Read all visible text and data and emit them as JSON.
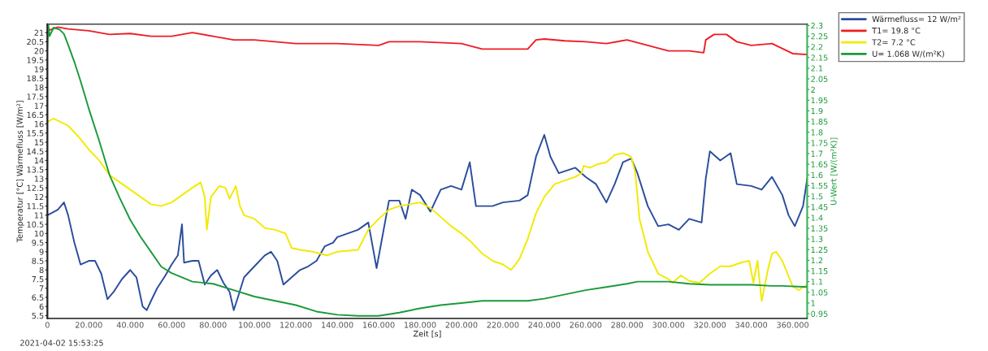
{
  "chart_data": {
    "type": "line",
    "xlabel": "Zeit [s]",
    "ylabel": "Temperatur [°C] Wärmefluss [W/m²]",
    "y2label": "U-Wert [W/(m²K)]",
    "annotations": [
      "2021-04-02 15:53:25"
    ],
    "xlim": [
      0,
      367
    ],
    "xticks": [
      0,
      {
        "value": 20,
        "label": "20.000"
      },
      {
        "value": 40,
        "label": "40.000"
      },
      {
        "value": 60,
        "label": "60.000"
      },
      {
        "value": 80,
        "label": "80.000"
      },
      {
        "value": 100,
        "label": "100.000"
      },
      {
        "value": 120,
        "label": "120.000"
      },
      {
        "value": 140,
        "label": "140.000"
      },
      {
        "value": 160,
        "label": "160.000"
      },
      {
        "value": 180,
        "label": "180.000"
      },
      {
        "value": 200,
        "label": "200.000"
      },
      {
        "value": 220,
        "label": "220.000"
      },
      {
        "value": 240,
        "label": "240.000"
      },
      {
        "value": 260,
        "label": "260.000"
      },
      {
        "value": 280,
        "label": "280.000"
      },
      {
        "value": 300,
        "label": "300.000"
      },
      {
        "value": 320,
        "label": "320.000"
      },
      {
        "value": 340,
        "label": "340.000"
      },
      {
        "value": 360,
        "label": "360.000"
      }
    ],
    "ylim": [
      5.35,
      21.46
    ],
    "yticks": [
      5.5,
      6,
      6.5,
      7,
      7.5,
      8,
      8.5,
      9,
      9.5,
      10,
      10.5,
      11,
      11.5,
      12,
      12.5,
      13,
      13.5,
      14,
      14.5,
      15,
      15.5,
      16,
      16.5,
      17,
      17.5,
      18,
      18.5,
      19,
      19.5,
      20,
      20.5,
      21
    ],
    "y2lim": [
      0.928,
      2.306
    ],
    "y2ticks": [
      0.95,
      1,
      1.05,
      1.1,
      1.15,
      1.2,
      1.25,
      1.3,
      1.35,
      1.4,
      1.45,
      1.5,
      1.55,
      1.6,
      1.65,
      1.7,
      1.75,
      1.8,
      1.85,
      1.9,
      1.95,
      2,
      2.05,
      2.1,
      2.15,
      2.2,
      2.25,
      2.3
    ],
    "grid": false,
    "legend": "top right",
    "marker": "none",
    "line_style": "solid",
    "series": [
      {
        "name": "Wärmefluss= 12 W/m²",
        "color": "#2a4d9c",
        "x": [
          0,
          5,
          8,
          10,
          13,
          16,
          20,
          23,
          26,
          29,
          32,
          36,
          40,
          43,
          46,
          48,
          50,
          53,
          57,
          60,
          63,
          65,
          66,
          70,
          73,
          76,
          79,
          82,
          85,
          88,
          90,
          92,
          95,
          100,
          105,
          108,
          111,
          114,
          118,
          122,
          126,
          130,
          134,
          138,
          140,
          150,
          155,
          159,
          165,
          170,
          173,
          176,
          180,
          185,
          190,
          195,
          200,
          204,
          207,
          215,
          220,
          228,
          232,
          236,
          240,
          243,
          247,
          255,
          260,
          265,
          270,
          274,
          278,
          282,
          285,
          290,
          295,
          300,
          305,
          310,
          316,
          318,
          320,
          325,
          330,
          333,
          340,
          345,
          350,
          355,
          358,
          361,
          365,
          367
        ],
        "values": [
          11,
          11.3,
          11.7,
          11,
          9.5,
          8.3,
          8.5,
          8.5,
          7.8,
          6.4,
          6.8,
          7.5,
          8,
          7.6,
          6,
          5.8,
          6.3,
          7,
          7.7,
          8.3,
          8.8,
          10.5,
          8.4,
          8.5,
          8.5,
          7.2,
          7.7,
          8,
          7.3,
          6.8,
          5.8,
          6.5,
          7.6,
          8.2,
          8.8,
          9,
          8.5,
          7.2,
          7.6,
          8,
          8.2,
          8.5,
          9.3,
          9.5,
          9.8,
          10.2,
          10.6,
          8.1,
          11.8,
          11.8,
          10.8,
          12.4,
          12.1,
          11.2,
          12.4,
          12.6,
          12.4,
          13.9,
          11.5,
          11.5,
          11.7,
          11.8,
          12.1,
          14.2,
          15.4,
          14.2,
          13.3,
          13.6,
          13.1,
          12.7,
          11.7,
          12.7,
          13.9,
          14.1,
          13.3,
          11.5,
          10.4,
          10.5,
          10.2,
          10.8,
          10.6,
          13,
          14.5,
          14,
          14.4,
          12.7,
          12.6,
          12.4,
          13.1,
          12.1,
          11,
          10.4,
          11.5,
          13
        ]
      },
      {
        "name": "T1= 19.8 °C",
        "color": "#ee1c24",
        "x": [
          0,
          5,
          10,
          20,
          30,
          40,
          50,
          60,
          70,
          80,
          90,
          100,
          110,
          120,
          140,
          160,
          165,
          180,
          200,
          210,
          220,
          232,
          236,
          240,
          250,
          260,
          270,
          280,
          290,
          300,
          310,
          317,
          318,
          322,
          328,
          333,
          340,
          350,
          360,
          367
        ],
        "values": [
          21.1,
          21.3,
          21.2,
          21.1,
          20.9,
          20.95,
          20.8,
          20.8,
          21,
          20.8,
          20.6,
          20.6,
          20.5,
          20.4,
          20.4,
          20.3,
          20.5,
          20.5,
          20.4,
          20.1,
          20.1,
          20.1,
          20.6,
          20.65,
          20.55,
          20.5,
          20.4,
          20.6,
          20.3,
          20,
          20,
          19.9,
          20.6,
          20.9,
          20.9,
          20.5,
          20.3,
          20.4,
          19.85,
          19.8
        ]
      },
      {
        "name": "T2= 7.2 °C",
        "color": "#f2ea00",
        "x": [
          0,
          3,
          10,
          15,
          20,
          25,
          30,
          35,
          40,
          45,
          50,
          55,
          60,
          65,
          70,
          74,
          76,
          77,
          79,
          83,
          86,
          88,
          91,
          93,
          95,
          100,
          105,
          110,
          115,
          118,
          122,
          128,
          135,
          140,
          150,
          155,
          160,
          165,
          170,
          175,
          180,
          185,
          190,
          195,
          200,
          205,
          210,
          215,
          220,
          224,
          228,
          232,
          236,
          240,
          245,
          250,
          255,
          258,
          259,
          262,
          266,
          270,
          274,
          278,
          282,
          284,
          286,
          290,
          295,
          300,
          302,
          306,
          310,
          315,
          320,
          325,
          330,
          335,
          339,
          341,
          343,
          345,
          348,
          350,
          352,
          355,
          360,
          363,
          367
        ],
        "values": [
          16.1,
          16.3,
          15.9,
          15.3,
          14.6,
          14,
          13.2,
          12.8,
          12.4,
          12,
          11.6,
          11.5,
          11.7,
          12.1,
          12.5,
          12.8,
          12,
          10.2,
          12,
          12.6,
          12.5,
          11.9,
          12.6,
          11.5,
          11,
          10.8,
          10.3,
          10.2,
          10,
          9.2,
          9.1,
          9,
          8.8,
          9,
          9.1,
          10.2,
          10.8,
          11.3,
          11.5,
          11.6,
          11.7,
          11.4,
          10.9,
          10.4,
          10,
          9.5,
          8.9,
          8.5,
          8.3,
          8,
          8.6,
          9.7,
          11.1,
          12,
          12.7,
          12.9,
          13.1,
          13.3,
          13.7,
          13.6,
          13.8,
          13.9,
          14.3,
          14.4,
          14.2,
          13.3,
          10.8,
          9,
          7.8,
          7.5,
          7.3,
          7.7,
          7.4,
          7.3,
          7.8,
          8.2,
          8.2,
          8.4,
          8.5,
          7.3,
          8.5,
          6.3,
          8,
          8.9,
          9,
          8.5,
          7.1,
          6.9,
          7.2
        ]
      },
      {
        "name": "U= 1.068 W/(m²K)",
        "color": "#1a9a3a",
        "axis": "y2",
        "x": [
          0,
          0.5,
          1,
          3,
          6,
          8,
          10,
          13,
          16,
          20,
          25,
          30,
          35,
          40,
          45,
          50,
          55,
          60,
          65,
          70,
          80,
          90,
          100,
          110,
          120,
          130,
          140,
          150,
          160,
          170,
          180,
          190,
          200,
          210,
          220,
          232,
          240,
          250,
          260,
          270,
          280,
          285,
          290,
          300,
          310,
          320,
          330,
          340,
          350,
          355,
          367
        ],
        "values": [
          2.2,
          2.3,
          2.25,
          2.29,
          2.28,
          2.26,
          2.21,
          2.13,
          2.04,
          1.91,
          1.76,
          1.6,
          1.49,
          1.39,
          1.31,
          1.24,
          1.17,
          1.14,
          1.12,
          1.1,
          1.09,
          1.06,
          1.03,
          1.01,
          0.99,
          0.96,
          0.945,
          0.94,
          0.94,
          0.955,
          0.975,
          0.99,
          1,
          1.01,
          1.01,
          1.01,
          1.02,
          1.04,
          1.06,
          1.075,
          1.09,
          1.1,
          1.1,
          1.1,
          1.09,
          1.085,
          1.085,
          1.085,
          1.08,
          1.08,
          1.075
        ]
      }
    ]
  }
}
